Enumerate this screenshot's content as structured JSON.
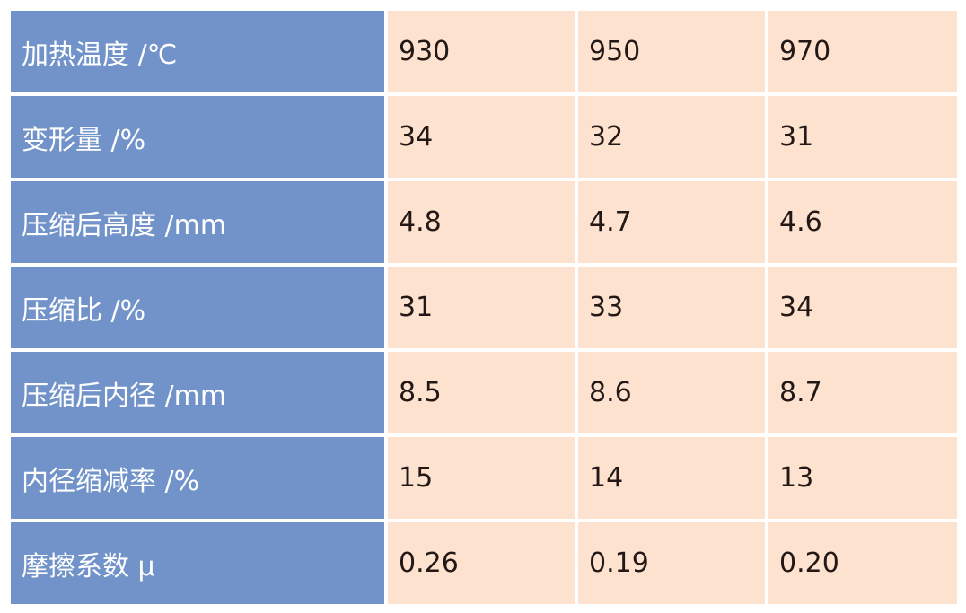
{
  "table": {
    "rows": [
      [
        "加热温度 /℃",
        "930",
        "950",
        "970"
      ],
      [
        "变形量 /%",
        "34",
        "32",
        "31"
      ],
      [
        "压缩后高度 /mm",
        "4.8",
        "4.7",
        "4.6"
      ],
      [
        "压缩比 /%",
        "31",
        "33",
        "34"
      ],
      [
        "压缩后内径 /mm",
        "8.5",
        "8.6",
        "8.7"
      ],
      [
        "内径缩减率 /%",
        "15",
        "14",
        "13"
      ],
      [
        "摩擦系数 μ",
        "0.26",
        "0.19",
        "0.20"
      ]
    ]
  }
}
